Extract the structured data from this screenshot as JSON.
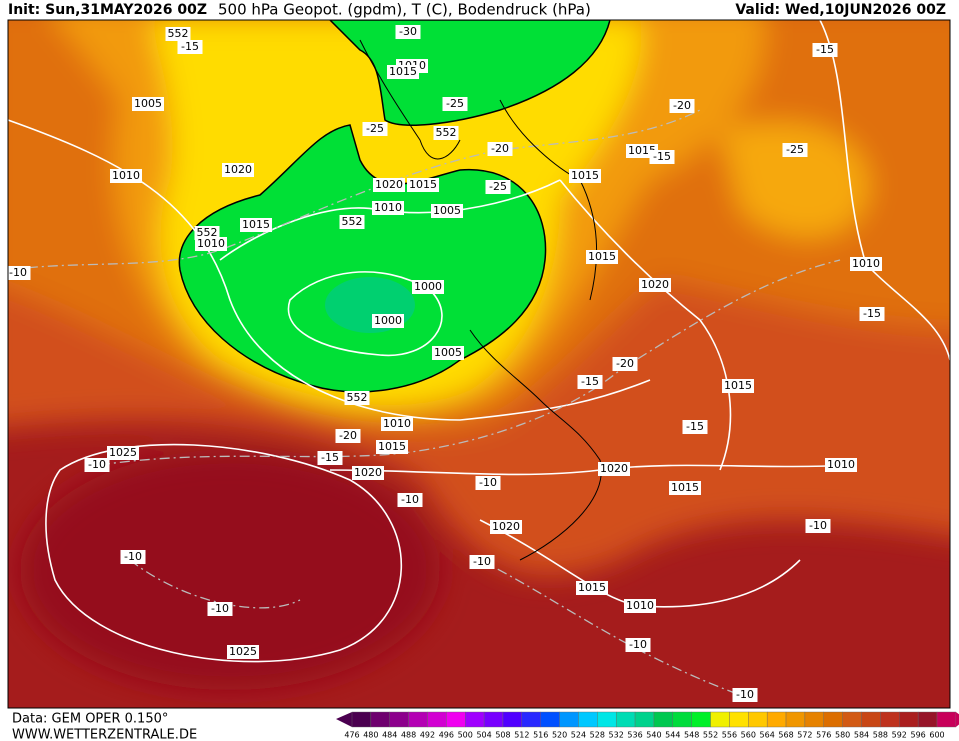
{
  "header": {
    "init": "Init: Sun,31MAY2026 00Z",
    "title": "500 hPa Geopot. (gpdm), T (C), Bodendruck (hPa)",
    "valid": "Valid: Wed,10JUN2026 00Z"
  },
  "footer": {
    "source": "Data: GEM OPER 0.150°",
    "site": "WWW.WETTERZENTRALE.DE"
  },
  "colorbar": {
    "levels": [
      476,
      480,
      484,
      488,
      492,
      496,
      500,
      504,
      508,
      512,
      516,
      520,
      524,
      528,
      532,
      536,
      540,
      544,
      548,
      552,
      556,
      560,
      564,
      568,
      572,
      576,
      580,
      584,
      588,
      592,
      596,
      600
    ],
    "colors": [
      "#4b0050",
      "#6e006e",
      "#8c008c",
      "#b400b4",
      "#d200d2",
      "#f000f0",
      "#a000ff",
      "#7800ff",
      "#5000ff",
      "#2828ff",
      "#0050ff",
      "#0096ff",
      "#00c8ff",
      "#00e6e6",
      "#00dcb4",
      "#00d28c",
      "#00c850",
      "#00dc3c",
      "#00f028",
      "#f0f000",
      "#ffe100",
      "#ffc800",
      "#ffaa00",
      "#f09600",
      "#e68200",
      "#dc6e00",
      "#d25a14",
      "#c84614",
      "#be321e",
      "#aa1e1e",
      "#961428",
      "#c8005a"
    ]
  },
  "map": {
    "contour_labels": [
      "552",
      "-15",
      "-30",
      "1010",
      "1015",
      "1005",
      "-25",
      "-25",
      "552",
      "1020",
      "1010",
      "-20",
      "1015",
      "-15",
      "-20",
      "-15",
      "-25",
      "1020",
      "1015",
      "-25",
      "1015",
      "1010",
      "1005",
      "552",
      "1015",
      "552",
      "1010",
      "1000",
      "1015",
      "1020",
      "1010",
      "-10",
      "1000",
      "-15",
      "1005",
      "-20",
      "-15",
      "1015",
      "552",
      "1010",
      "-20",
      "1015",
      "-15",
      "1025",
      "-10",
      "-15",
      "1020",
      "1020",
      "1010",
      "-10",
      "-10",
      "1015",
      "1020",
      "-10",
      "-10",
      "-10",
      "1015",
      "1010",
      "-10",
      "-10",
      "1025",
      "-10"
    ]
  }
}
